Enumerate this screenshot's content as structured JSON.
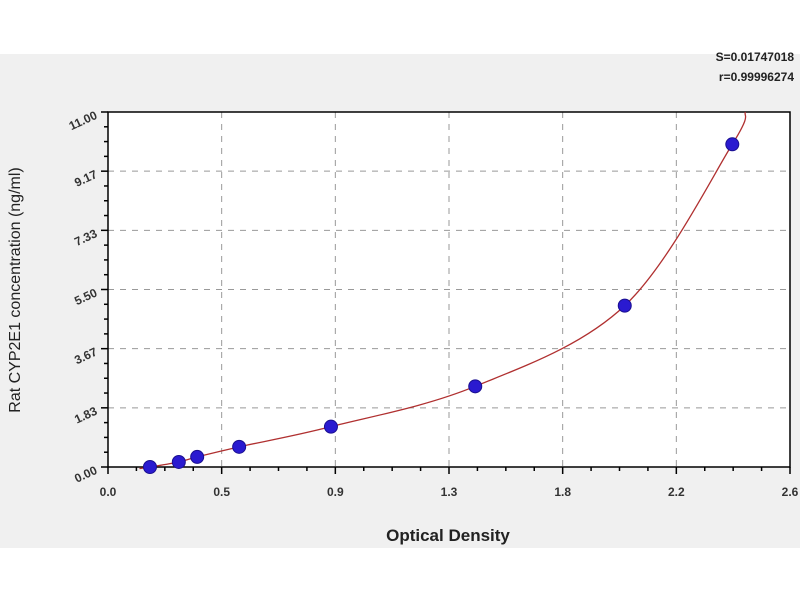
{
  "chart_data": {
    "type": "scatter",
    "title": "",
    "xlabel": "Optical Density",
    "ylabel": "Rat CYP2E1 concentration (ng/ml)",
    "xlim": [
      0,
      2.6
    ],
    "ylim": [
      0,
      11.0
    ],
    "x_ticks": [
      "0.0",
      "0.5",
      "0.9",
      "1.3",
      "1.8",
      "2.2",
      "2.6"
    ],
    "y_ticks": [
      "0.00",
      "1.83",
      "3.67",
      "5.50",
      "7.33",
      "9.17",
      "11.00"
    ],
    "grid": true,
    "series": [
      {
        "x": [
          0.16,
          0.27,
          0.34,
          0.5,
          0.85,
          1.4,
          1.97,
          2.38
        ],
        "y": [
          0,
          0.156,
          0.312,
          0.625,
          1.25,
          2.5,
          5,
          10
        ],
        "marker_color": "#2a1ad0",
        "line_color": "#b03030"
      }
    ],
    "annotations": [
      "S=0.01747018",
      "r=0.99996274"
    ]
  }
}
